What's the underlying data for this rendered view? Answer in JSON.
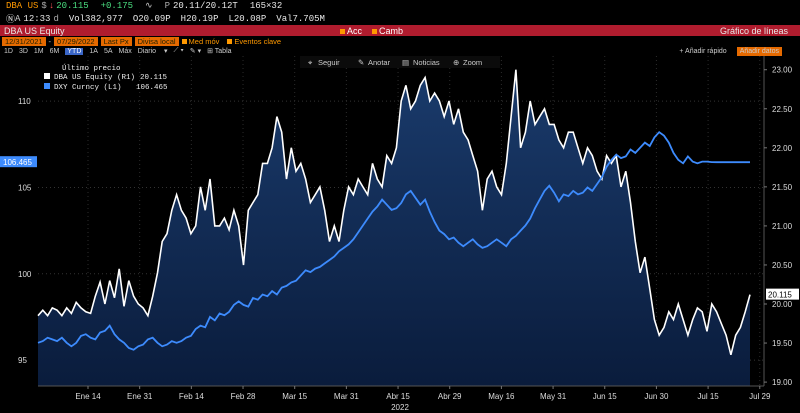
{
  "ticker_bar": {
    "symbol": "DBA US",
    "currency_symbol": "$",
    "last": "20.115",
    "change": "+0.175",
    "bid_ask": "20.11/20.12",
    "bid_ask_suffix": "T",
    "size": "165×32",
    "time_prefix": "A",
    "time": "12:33",
    "time_suffix": "d",
    "vol_label": "Vol",
    "volume": "382,977",
    "open_label": "O",
    "open": "20.09P",
    "high_label": "H",
    "high": "20.19P",
    "low_label": "L",
    "low": "20.08P",
    "val_label": "Val",
    "value": "7.705M"
  },
  "row2": {
    "acc_label": "Acc",
    "camb_label": "Camb"
  },
  "title_bar": {
    "security": "DBA US Equity",
    "chart_name": "Gráfico de líneas"
  },
  "options_bar": {
    "date_from": "12/31/2021",
    "date_to": "07/29/2022",
    "field": "Last Px",
    "currency": "Divisa local",
    "avg_label": "Med móv",
    "events_label": "Eventos clave"
  },
  "period_bar": {
    "periods": [
      "1D",
      "3D",
      "1M",
      "6M",
      "YTD",
      "1A",
      "5A",
      "Máx"
    ],
    "active_period": "YTD",
    "frequency": "Diario",
    "table_label": "Tabla",
    "quick_add": "Añadir rápido",
    "add_data": "Añadir datos"
  },
  "toolbar": {
    "follow": "Seguir",
    "annotate": "Anotar",
    "news": "Noticias",
    "zoom": "Zoom"
  },
  "legend": {
    "header": "Último precio",
    "items": [
      {
        "label": "DBA US Equity  (R1)",
        "value": "20.115",
        "color": "#ffffff"
      },
      {
        "label": "DXY Curncy  (L1)",
        "value": "106.465",
        "color": "#3d8bfd"
      }
    ]
  },
  "colors": {
    "dba": "#ffffff",
    "dxy": "#3d8bfd",
    "area_top": "#14305c",
    "area_bottom": "#0a1a36",
    "title_bar": "#b01c2e",
    "accent": "#ff9900"
  },
  "chart_data": {
    "type": "line",
    "x_ticks": [
      "Ene 14",
      "Ene 31",
      "Feb 14",
      "Feb 28",
      "Mar 15",
      "Mar 31",
      "Abr 15",
      "Abr 29",
      "May 16",
      "May 31",
      "Jun 15",
      "Jun 30",
      "Jul 15",
      "Jul 29"
    ],
    "x_year": "2022",
    "left_axis": {
      "ticks": [
        "95",
        "100",
        "105",
        "110"
      ],
      "range": [
        93.5,
        112.5
      ],
      "current_label": "106.465"
    },
    "right_axis": {
      "ticks": [
        "19.00",
        "19.50",
        "20.00",
        "20.50",
        "21.00",
        "21.50",
        "22.00",
        "22.50",
        "23.00"
      ],
      "range": [
        18.95,
        23.15
      ],
      "current_label": "20.115"
    },
    "x_range": [
      0,
      148
    ],
    "x_tick_index": [
      10,
      22,
      34,
      45,
      56,
      68,
      80,
      91,
      103,
      114,
      125,
      136,
      147,
      158
    ],
    "series": [
      {
        "name": "DBA US Equity",
        "axis": "right",
        "values": [
          19.85,
          19.92,
          19.85,
          19.95,
          19.92,
          19.85,
          19.95,
          19.88,
          20.02,
          19.95,
          19.9,
          19.88,
          20.1,
          20.28,
          20.0,
          20.3,
          20.08,
          20.45,
          19.97,
          20.3,
          20.1,
          20.0,
          19.95,
          19.85,
          20.1,
          20.4,
          20.8,
          20.9,
          21.2,
          21.4,
          21.2,
          21.1,
          20.9,
          21.0,
          21.5,
          21.2,
          21.6,
          21.0,
          21.0,
          21.1,
          20.95,
          21.2,
          21.0,
          20.5,
          21.2,
          21.3,
          21.4,
          21.8,
          21.8,
          22.0,
          22.4,
          22.2,
          21.6,
          22.0,
          21.7,
          21.8,
          21.6,
          21.3,
          21.4,
          21.5,
          21.2,
          20.8,
          21.0,
          20.8,
          21.2,
          21.5,
          21.4,
          21.6,
          21.5,
          21.4,
          21.8,
          21.6,
          21.5,
          21.9,
          21.8,
          22.0,
          22.6,
          22.8,
          22.5,
          22.6,
          22.8,
          22.9,
          22.6,
          22.7,
          22.6,
          22.4,
          22.6,
          22.3,
          22.5,
          22.2,
          22.1,
          21.9,
          21.7,
          21.2,
          21.6,
          21.7,
          21.5,
          21.4,
          21.8,
          22.4,
          23.0,
          22.0,
          22.2,
          22.6,
          22.3,
          22.4,
          22.5,
          22.3,
          22.3,
          22.1,
          22.0,
          22.2,
          22.2,
          22.0,
          21.8,
          22.0,
          21.9,
          21.7,
          21.6,
          21.9,
          21.8,
          21.9,
          21.5,
          21.7,
          21.3,
          20.8,
          20.4,
          20.6,
          20.2,
          19.8,
          19.6,
          19.7,
          19.9,
          19.8,
          20.0,
          19.8,
          19.6,
          19.8,
          19.95,
          19.9,
          19.65,
          20.0,
          19.9,
          19.75,
          19.6,
          19.35,
          19.6,
          19.7,
          19.9,
          20.12
        ]
      },
      {
        "name": "DXY Curncy",
        "axis": "left",
        "values": [
          96.0,
          96.1,
          96.3,
          96.2,
          96.1,
          96.3,
          96.0,
          95.8,
          96.0,
          96.4,
          96.5,
          96.3,
          96.2,
          96.6,
          96.7,
          97.0,
          96.5,
          96.2,
          96.0,
          95.7,
          95.6,
          95.8,
          95.9,
          96.2,
          96.3,
          96.0,
          95.8,
          95.9,
          96.1,
          96.0,
          96.1,
          96.3,
          96.4,
          96.8,
          97.0,
          96.9,
          97.5,
          97.3,
          97.7,
          97.6,
          97.8,
          98.2,
          98.4,
          98.2,
          98.1,
          98.6,
          98.5,
          98.8,
          98.7,
          99.0,
          98.8,
          99.2,
          99.3,
          99.5,
          99.6,
          99.9,
          100.2,
          100.1,
          100.3,
          100.4,
          100.6,
          100.8,
          101.0,
          101.3,
          101.5,
          101.7,
          102.0,
          102.4,
          102.8,
          103.2,
          103.6,
          103.9,
          104.3,
          104.0,
          103.7,
          103.8,
          104.1,
          104.6,
          104.8,
          104.4,
          104.0,
          104.3,
          103.6,
          103.0,
          102.5,
          102.3,
          102.0,
          102.1,
          101.8,
          101.6,
          101.8,
          102.0,
          101.7,
          101.5,
          101.6,
          101.8,
          102.0,
          101.8,
          101.6,
          102.0,
          102.2,
          102.5,
          102.8,
          103.2,
          103.8,
          104.3,
          104.8,
          105.1,
          104.7,
          104.2,
          104.6,
          104.5,
          104.8,
          104.6,
          104.7,
          105.0,
          104.8,
          105.2,
          105.6,
          106.2,
          106.6,
          106.9,
          106.7,
          106.8,
          107.2,
          107.0,
          107.3,
          107.6,
          107.4,
          107.9,
          108.2,
          108.0,
          107.6,
          107.0,
          106.6,
          106.4,
          106.8,
          106.5,
          106.4,
          106.5,
          106.5,
          106.47,
          106.465,
          106.465,
          106.465,
          106.465,
          106.465,
          106.465,
          106.465,
          106.465
        ]
      }
    ]
  }
}
